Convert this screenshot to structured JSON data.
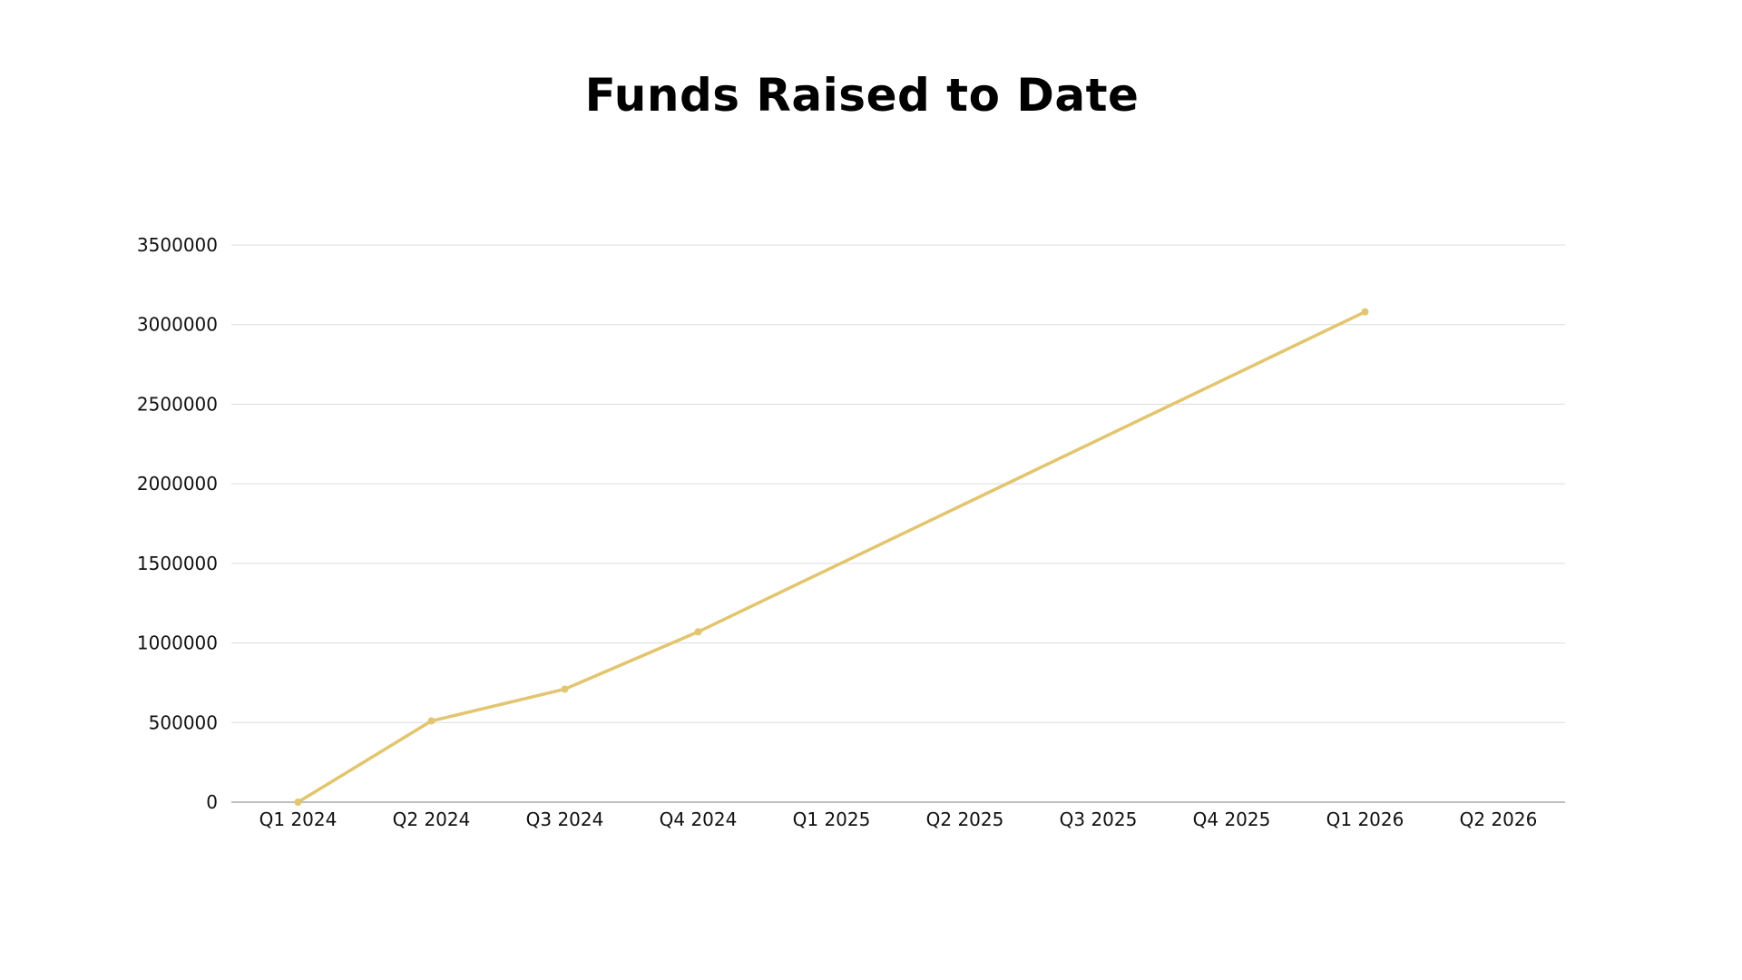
{
  "chart_data": {
    "type": "line",
    "title": "Funds Raised to Date",
    "xlabel": "",
    "ylabel": "",
    "categories": [
      "Q1 2024",
      "Q2 2024",
      "Q3 2024",
      "Q4 2024",
      "Q1 2025",
      "Q2 2025",
      "Q3 2025",
      "Q4 2025",
      "Q1 2026",
      "Q2 2026"
    ],
    "series": [
      {
        "values": [
          0,
          510000,
          710000,
          1070000,
          null,
          null,
          null,
          null,
          3080000,
          null
        ],
        "color": "#E2C56E"
      }
    ],
    "y_ticks": [
      "0",
      "500000",
      "1000000",
      "1500000",
      "2000000",
      "2500000",
      "3000000",
      "3500000"
    ],
    "ylim": [
      0,
      3500000
    ],
    "grid": true,
    "gridline_color": "#DDDDDD",
    "axis_color": "#AAAAAA",
    "legend": "none"
  }
}
